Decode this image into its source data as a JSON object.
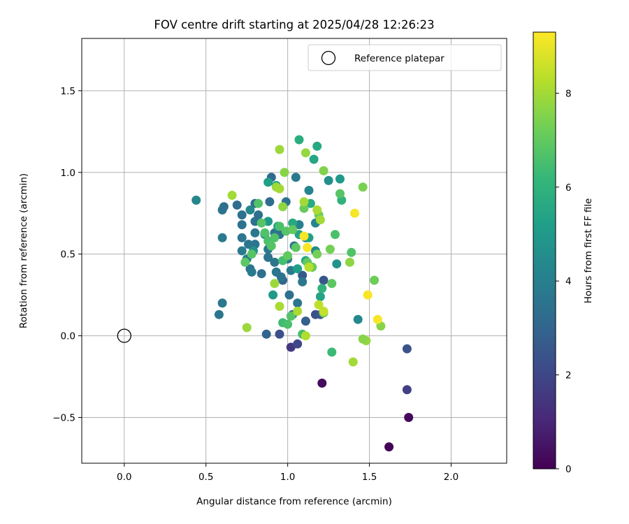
{
  "chart_data": {
    "type": "scatter",
    "title": "FOV centre drift starting at 2025/04/28 12:26:23",
    "xlabel": "Angular distance from reference (arcmin)",
    "ylabel": "Rotation from reference (arcmin)",
    "xlim": [
      -0.26,
      2.34
    ],
    "ylim": [
      -0.78,
      1.82
    ],
    "xticks": [
      0.0,
      0.5,
      1.0,
      1.5,
      2.0
    ],
    "xtick_labels": [
      "0.0",
      "0.5",
      "1.0",
      "1.5",
      "2.0"
    ],
    "yticks": [
      -0.5,
      0.0,
      0.5,
      1.0,
      1.5
    ],
    "ytick_labels": [
      "−0.5",
      "0.0",
      "0.5",
      "1.0",
      "1.5"
    ],
    "grid": true,
    "legend": {
      "placement": "top-right",
      "entries": [
        {
          "label": "Reference platepar",
          "marker": "open-circle"
        }
      ]
    },
    "reference_point": {
      "x": 0.0,
      "y": 0.0
    },
    "colorbar": {
      "label": "Hours from first FF file",
      "range": [
        0,
        9.3
      ],
      "ticks": [
        0,
        2,
        4,
        6,
        8
      ],
      "tick_labels": [
        "0",
        "2",
        "4",
        "6",
        "8"
      ],
      "colormap": "viridis"
    },
    "colormap_stops": [
      "#440154",
      "#482878",
      "#3e4989",
      "#31688e",
      "#26828e",
      "#1f9e89",
      "#35b779",
      "#6ece58",
      "#b5de2b",
      "#fde725"
    ],
    "points": [
      [
        1.62,
        -0.68,
        0.1
      ],
      [
        1.74,
        -0.5,
        0.2
      ],
      [
        1.21,
        -0.29,
        0.3
      ],
      [
        1.73,
        -0.33,
        1.8
      ],
      [
        1.73,
        -0.08,
        2.4
      ],
      [
        1.02,
        -0.07,
        1.5
      ],
      [
        1.06,
        -0.05,
        2.0
      ],
      [
        0.95,
        0.01,
        2.3
      ],
      [
        0.87,
        0.01,
        3.0
      ],
      [
        1.17,
        0.13,
        2.3
      ],
      [
        1.2,
        0.13,
        2.6
      ],
      [
        1.11,
        0.09,
        2.8
      ],
      [
        1.22,
        0.34,
        2.5
      ],
      [
        1.03,
        0.13,
        3.2
      ],
      [
        1.09,
        0.37,
        2.6
      ],
      [
        0.97,
        0.34,
        3.0
      ],
      [
        1.01,
        0.25,
        3.4
      ],
      [
        1.06,
        0.2,
        3.6
      ],
      [
        1.15,
        0.42,
        3.8
      ],
      [
        1.43,
        0.1,
        4.4
      ],
      [
        0.58,
        0.13,
        3.6
      ],
      [
        0.6,
        0.2,
        3.7
      ],
      [
        0.44,
        0.83,
        4.3
      ],
      [
        0.6,
        0.6,
        3.8
      ],
      [
        0.6,
        0.77,
        3.6
      ],
      [
        0.61,
        0.79,
        3.4
      ],
      [
        0.69,
        0.8,
        3.3
      ],
      [
        0.72,
        0.74,
        3.4
      ],
      [
        0.72,
        0.68,
        3.5
      ],
      [
        0.72,
        0.6,
        3.6
      ],
      [
        0.72,
        0.52,
        3.8
      ],
      [
        0.75,
        0.47,
        3.9
      ],
      [
        0.76,
        0.56,
        3.6
      ],
      [
        0.77,
        0.41,
        3.5
      ],
      [
        0.78,
        0.39,
        3.8
      ],
      [
        0.8,
        0.56,
        3.6
      ],
      [
        0.8,
        0.63,
        3.7
      ],
      [
        0.8,
        0.7,
        3.5
      ],
      [
        0.8,
        0.81,
        3.3
      ],
      [
        0.82,
        0.74,
        3.4
      ],
      [
        0.84,
        0.38,
        3.4
      ],
      [
        0.88,
        0.53,
        3.7
      ],
      [
        0.88,
        0.48,
        3.5
      ],
      [
        0.89,
        0.82,
        3.3
      ],
      [
        0.9,
        0.97,
        3.2
      ],
      [
        0.92,
        0.63,
        3.6
      ],
      [
        0.92,
        0.45,
        3.6
      ],
      [
        0.93,
        0.39,
        3.6
      ],
      [
        0.95,
        0.62,
        3.5
      ],
      [
        0.96,
        0.36,
        3.5
      ],
      [
        0.99,
        0.82,
        3.5
      ],
      [
        1.0,
        0.47,
        3.8
      ],
      [
        1.02,
        0.4,
        3.9
      ],
      [
        1.04,
        0.55,
        3.6
      ],
      [
        1.05,
        0.97,
        3.8
      ],
      [
        1.07,
        0.68,
        4.0
      ],
      [
        1.09,
        0.33,
        3.7
      ],
      [
        1.11,
        0.6,
        4.0
      ],
      [
        1.13,
        0.89,
        4.2
      ],
      [
        1.17,
        0.69,
        4.2
      ],
      [
        1.17,
        0.52,
        4.4
      ],
      [
        1.25,
        0.95,
        4.6
      ],
      [
        1.3,
        0.44,
        4.8
      ],
      [
        1.32,
        0.96,
        5.0
      ],
      [
        0.77,
        0.77,
        4.3
      ],
      [
        0.79,
        0.52,
        4.6
      ],
      [
        0.86,
        0.62,
        4.8
      ],
      [
        0.88,
        0.7,
        5.0
      ],
      [
        0.88,
        0.94,
        5.2
      ],
      [
        0.91,
        0.25,
        5.0
      ],
      [
        0.93,
        0.92,
        5.4
      ],
      [
        0.94,
        0.67,
        5.2
      ],
      [
        1.03,
        0.69,
        5.6
      ],
      [
        1.06,
        0.41,
        5.2
      ],
      [
        1.07,
        0.62,
        5.4
      ],
      [
        1.11,
        0.46,
        5.4
      ],
      [
        1.13,
        0.6,
        5.2
      ],
      [
        1.16,
        1.08,
        5.5
      ],
      [
        1.18,
        1.16,
        5.6
      ],
      [
        1.2,
        0.24,
        5.4
      ],
      [
        1.07,
        1.2,
        5.8
      ],
      [
        1.33,
        0.83,
        6.0
      ],
      [
        1.14,
        0.81,
        5.7
      ],
      [
        1.21,
        0.29,
        6.0
      ],
      [
        0.97,
        0.08,
        6.4
      ],
      [
        1.0,
        0.07,
        6.6
      ],
      [
        1.02,
        0.12,
        6.8
      ],
      [
        1.09,
        0.01,
        6.5
      ],
      [
        1.27,
        -0.1,
        6.3
      ],
      [
        1.29,
        0.62,
        6.6
      ],
      [
        1.32,
        0.87,
        6.8
      ],
      [
        1.39,
        0.51,
        6.7
      ],
      [
        1.27,
        0.32,
        6.9
      ],
      [
        0.74,
        0.45,
        6.9
      ],
      [
        0.78,
        0.5,
        6.8
      ],
      [
        0.82,
        0.81,
        6.7
      ],
      [
        0.84,
        0.69,
        6.8
      ],
      [
        0.86,
        0.63,
        6.7
      ],
      [
        0.88,
        0.58,
        6.6
      ],
      [
        0.9,
        0.55,
        6.8
      ],
      [
        0.92,
        0.6,
        6.7
      ],
      [
        0.95,
        0.67,
        6.6
      ],
      [
        0.97,
        0.46,
        6.5
      ],
      [
        0.99,
        0.64,
        6.8
      ],
      [
        1.0,
        0.49,
        7.0
      ],
      [
        1.03,
        0.65,
        7.0
      ],
      [
        1.05,
        0.54,
        6.9
      ],
      [
        1.1,
        0.78,
        7.1
      ],
      [
        1.12,
        0.45,
        7.0
      ],
      [
        1.15,
        0.42,
        7.2
      ],
      [
        1.18,
        0.5,
        7.3
      ],
      [
        1.19,
        0.74,
        7.2
      ],
      [
        1.22,
        0.14,
        7.4
      ],
      [
        1.26,
        0.53,
        7.3
      ],
      [
        1.38,
        0.45,
        7.7
      ],
      [
        1.48,
        -0.03,
        7.8
      ],
      [
        1.46,
        -0.02,
        7.6
      ],
      [
        1.53,
        0.34,
        7.2
      ],
      [
        1.57,
        0.06,
        7.6
      ],
      [
        1.46,
        0.91,
        7.4
      ],
      [
        1.22,
        1.01,
        7.5
      ],
      [
        1.11,
        1.12,
        7.8
      ],
      [
        0.95,
        1.14,
        7.9
      ],
      [
        0.98,
        1.0,
        7.6
      ],
      [
        0.93,
        0.91,
        7.9
      ],
      [
        0.95,
        0.9,
        8.0
      ],
      [
        0.97,
        0.79,
        7.7
      ],
      [
        0.92,
        0.32,
        7.9
      ],
      [
        0.95,
        0.18,
        8.1
      ],
      [
        0.75,
        0.05,
        7.9
      ],
      [
        0.66,
        0.86,
        8.0
      ],
      [
        1.06,
        0.15,
        8.1
      ],
      [
        1.11,
        0.0,
        8.2
      ],
      [
        1.19,
        0.19,
        8.4
      ],
      [
        1.22,
        0.15,
        8.5
      ],
      [
        1.4,
        -0.16,
        8.0
      ],
      [
        1.2,
        0.71,
        8.0
      ],
      [
        1.18,
        0.77,
        8.1
      ],
      [
        1.13,
        0.42,
        8.3
      ],
      [
        1.1,
        0.82,
        8.0
      ],
      [
        1.49,
        0.25,
        9.2
      ],
      [
        1.55,
        0.1,
        9.2
      ],
      [
        1.41,
        0.75,
        9.2
      ],
      [
        1.12,
        0.54,
        9.2
      ],
      [
        1.1,
        0.61,
        9.2
      ]
    ]
  }
}
